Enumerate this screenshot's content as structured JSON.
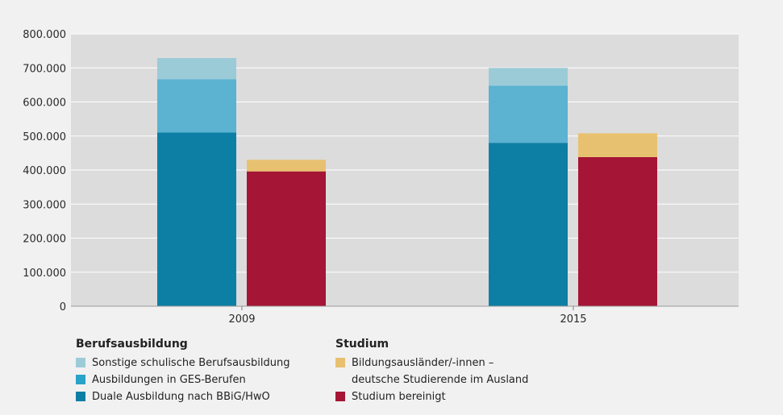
{
  "chart_data": {
    "type": "bar",
    "stacked": true,
    "categories": [
      "2009",
      "2015"
    ],
    "groups": [
      {
        "title": "Berufsausbildung",
        "series": [
          {
            "name": "Duale Ausbildung nach BBiG/HwO",
            "color": "#0d7fa5",
            "values": [
              510000,
              480000
            ]
          },
          {
            "name": "Ausbildungen in GES-Berufen",
            "color": "#5bb2d1",
            "values": [
              157000,
              168000
            ]
          },
          {
            "name": "Sonstige schulische Berufsausbildung",
            "color": "#9ccbd8",
            "values": [
              62000,
              52000
            ]
          }
        ]
      },
      {
        "title": "Studium",
        "series": [
          {
            "name": "Studium bereinigt",
            "color": "#a51535",
            "values": [
              396000,
              438000
            ]
          },
          {
            "name": "Bildungsausländer/-innen – deutsche Studierende im Ausland",
            "color": "#e8c170",
            "values": [
              34000,
              70000
            ]
          }
        ]
      }
    ],
    "ylim": [
      0,
      800000
    ],
    "yticks": [
      0,
      100000,
      200000,
      300000,
      400000,
      500000,
      600000,
      700000,
      800000
    ],
    "ytick_labels": [
      "0",
      "100.000",
      "200.000",
      "300.000",
      "400.000",
      "500.000",
      "600.000",
      "700.000",
      "800.000"
    ],
    "grid": true,
    "legend_position": "bottom"
  },
  "legend": {
    "left_title": "Berufsausbildung",
    "left_items": [
      {
        "label": "Sonstige schulische Berufsausbildung",
        "color": "#9ccbd8"
      },
      {
        "label": "Ausbildungen in GES-Berufen",
        "color": "#2aa3c8"
      },
      {
        "label": "Duale Ausbildung nach BBiG/HwO",
        "color": "#0d7fa5"
      }
    ],
    "right_title": "Studium",
    "right_items": [
      {
        "label_line1": "Bildungsausländer/-innen –",
        "label_line2": "deutsche Studierende im Ausland",
        "color": "#e8c170"
      },
      {
        "label": "Studium bereinigt",
        "color": "#a51535"
      }
    ]
  }
}
